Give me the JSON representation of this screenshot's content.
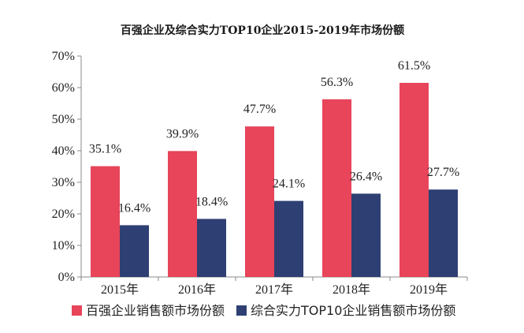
{
  "chart_data": {
    "type": "bar",
    "title": "百强企业及综合实力TOP10企业2015-2019年市场份额",
    "xlabel": "",
    "ylabel": "",
    "categories": [
      "2015年",
      "2016年",
      "2017年",
      "2018年",
      "2019年"
    ],
    "series": [
      {
        "name": "百强企业销售额市场份额",
        "color": "#e8445a",
        "values": [
          35.1,
          39.9,
          47.7,
          56.3,
          61.5
        ],
        "labels": [
          "35.1%",
          "39.9%",
          "47.7%",
          "56.3%",
          "61.5%"
        ]
      },
      {
        "name": "综合实力TOP10企业销售额市场份额",
        "color": "#2e3f73",
        "values": [
          16.4,
          18.4,
          24.1,
          26.4,
          27.7
        ],
        "labels": [
          "16.4%",
          "18.4%",
          "24.1%",
          "26.4%",
          "27.7%"
        ]
      }
    ],
    "ylim": [
      0,
      70
    ],
    "yticks": [
      "0%",
      "10%",
      "20%",
      "30%",
      "40%",
      "50%",
      "60%",
      "70%"
    ],
    "grid": false,
    "legend_position": "bottom"
  }
}
